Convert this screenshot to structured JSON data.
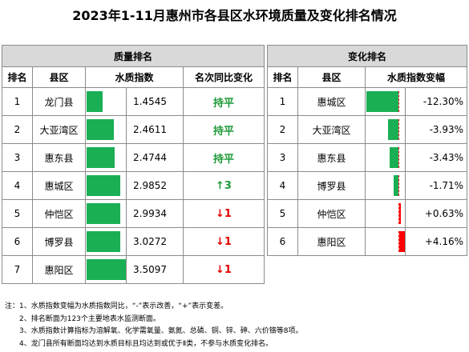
{
  "title": "2023年1-11月惠州市各县区水环境质量及变化排名情况",
  "quality": {
    "group_title": "质量排名",
    "headers": [
      "排名",
      "县区",
      "水质指数",
      "名次同比变化"
    ],
    "max_index": 3.5097,
    "rows": [
      {
        "rank": "1",
        "district": "龙门县",
        "index": 1.4545,
        "index_text": "1.4545",
        "change": "持平",
        "change_type": "flat"
      },
      {
        "rank": "2",
        "district": "大亚湾区",
        "index": 2.4611,
        "index_text": "2.4611",
        "change": "持平",
        "change_type": "flat"
      },
      {
        "rank": "3",
        "district": "惠东县",
        "index": 2.4744,
        "index_text": "2.4744",
        "change": "持平",
        "change_type": "flat"
      },
      {
        "rank": "4",
        "district": "惠城区",
        "index": 2.9852,
        "index_text": "2.9852",
        "change": "↑3",
        "change_type": "up"
      },
      {
        "rank": "5",
        "district": "仲恺区",
        "index": 2.9934,
        "index_text": "2.9934",
        "change": "↓1",
        "change_type": "down"
      },
      {
        "rank": "6",
        "district": "博罗县",
        "index": 3.0272,
        "index_text": "3.0272",
        "change": "↓1",
        "change_type": "down"
      },
      {
        "rank": "7",
        "district": "惠阳区",
        "index": 3.5097,
        "index_text": "3.5097",
        "change": "↓1",
        "change_type": "down"
      }
    ]
  },
  "change": {
    "group_title": "变化排名",
    "headers": [
      "排名",
      "县区",
      "水质指数变幅"
    ],
    "max_abs_pct": 12.3,
    "rows": [
      {
        "rank": "1",
        "district": "惠城区",
        "pct": -12.3,
        "pct_text": "-12.30%"
      },
      {
        "rank": "2",
        "district": "大亚湾区",
        "pct": -3.93,
        "pct_text": "-3.93%"
      },
      {
        "rank": "3",
        "district": "惠东县",
        "pct": -3.43,
        "pct_text": "-3.43%"
      },
      {
        "rank": "4",
        "district": "博罗县",
        "pct": -1.71,
        "pct_text": "-1.71%"
      },
      {
        "rank": "5",
        "district": "仲恺区",
        "pct": 0.63,
        "pct_text": "+0.63%"
      },
      {
        "rank": "6",
        "district": "惠阳区",
        "pct": 4.16,
        "pct_text": "+4.16%"
      }
    ]
  },
  "notes": [
    "注：1、水质指数变幅为水质指数同比，“-”表示改善，“+”表示变差。",
    "2、排名断面为123个主要地表水监测断面。",
    "3、水质指数计算指标为溶解氧、化学需氧量、氨氮、总磷、铜、锌、砷、六价铬等8项。",
    "4、龙门县所有断面均达到水质目标且均达到或优于Ⅱ类，不参与水质变化排名。"
  ],
  "colors": {
    "good": "#1aaf54",
    "bad": "#ff0000",
    "header_bg": "#d9d9d9"
  }
}
